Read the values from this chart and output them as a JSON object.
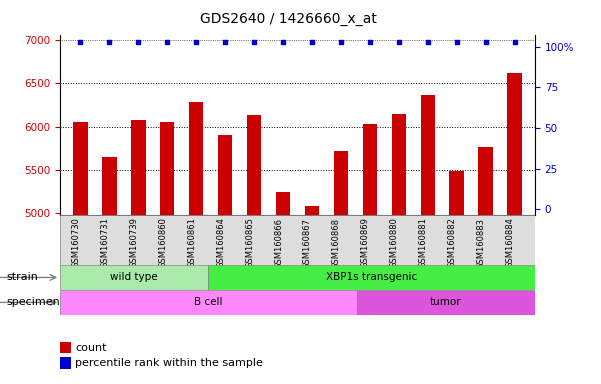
{
  "title": "GDS2640 / 1426660_x_at",
  "samples": [
    "GSM160730",
    "GSM160731",
    "GSM160739",
    "GSM160860",
    "GSM160861",
    "GSM160864",
    "GSM160865",
    "GSM160866",
    "GSM160867",
    "GSM160868",
    "GSM160869",
    "GSM160880",
    "GSM160881",
    "GSM160882",
    "GSM160883",
    "GSM160884"
  ],
  "counts": [
    6050,
    5650,
    6080,
    6050,
    6280,
    5900,
    6130,
    5250,
    5080,
    5720,
    6030,
    6150,
    6360,
    5490,
    5760,
    6620
  ],
  "percentile_values": [
    98,
    98,
    98,
    98,
    98,
    98,
    98,
    98,
    98,
    98,
    98,
    98,
    98,
    98,
    98,
    98
  ],
  "bar_color": "#cc0000",
  "percentile_color": "#0000cc",
  "ylim_left": [
    4980,
    7060
  ],
  "ylim_right": [
    -3.6,
    107.6
  ],
  "yticks_left": [
    5000,
    5500,
    6000,
    6500,
    7000
  ],
  "yticks_right": [
    0,
    25,
    50,
    75,
    100
  ],
  "strain_groups": [
    {
      "label": "wild type",
      "start": 0,
      "end": 5,
      "color": "#aaeaaa"
    },
    {
      "label": "XBP1s transgenic",
      "start": 5,
      "end": 16,
      "color": "#44ee44"
    }
  ],
  "specimen_groups": [
    {
      "label": "B cell",
      "start": 0,
      "end": 10,
      "color": "#ff88ff"
    },
    {
      "label": "tumor",
      "start": 10,
      "end": 16,
      "color": "#dd55dd"
    }
  ],
  "strain_label": "strain",
  "specimen_label": "specimen",
  "legend_count_label": "count",
  "legend_percentile_label": "percentile rank within the sample",
  "background_color": "#ffffff",
  "tick_label_color": "#cc0000",
  "right_tick_color": "#0000cc",
  "title_fontsize": 10,
  "bar_width": 0.5
}
